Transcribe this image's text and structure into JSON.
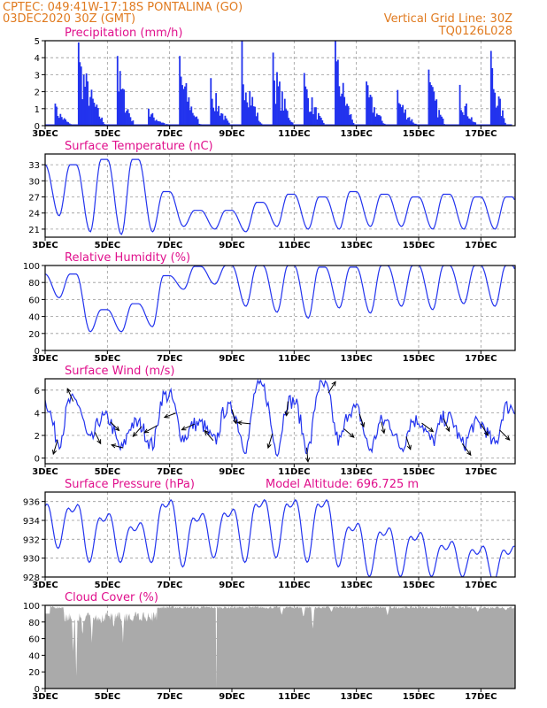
{
  "header": {
    "line1_left": "CPTEC:   049:41W-17:18S   PONTALINA (GO)",
    "line2_left": "03DEC2020 30Z (GMT)",
    "line1_right": "Vertical Grid Line: 30Z",
    "line2_right": "TQ0126L028"
  },
  "colors": {
    "header": "#e07a1f",
    "title": "#e0108c",
    "line": "#2233ee",
    "cloud": "#aaaaaa"
  },
  "chart_data": [
    {
      "type": "bar",
      "title": "Precipitation (mm/h)",
      "xticks": [
        "3DEC",
        "5DEC",
        "7DEC",
        "9DEC",
        "11DEC",
        "13DEC",
        "15DEC",
        "17DEC"
      ],
      "ylim": [
        0,
        5
      ],
      "yticks": [
        0,
        1,
        2,
        3,
        4,
        5
      ],
      "grid": true,
      "events": [
        {
          "x": [
            3.3,
            3.9
          ],
          "value": 1.3
        },
        {
          "x": [
            4.05,
            4.95
          ],
          "value": 4.9
        },
        {
          "x": [
            5.3,
            5.9
          ],
          "value": 4.1
        },
        {
          "x": [
            6.3,
            7.0
          ],
          "value": 1.0
        },
        {
          "x": [
            7.3,
            8.0
          ],
          "value": 4.1
        },
        {
          "x": [
            8.3,
            8.95
          ],
          "value": 2.8
        },
        {
          "x": [
            9.3,
            9.95
          ],
          "value": 5.0
        },
        {
          "x": [
            10.3,
            11.0
          ],
          "value": 4.3
        },
        {
          "x": [
            11.3,
            12.0
          ],
          "value": 3.1
        },
        {
          "x": [
            12.3,
            12.95
          ],
          "value": 5.0
        },
        {
          "x": [
            13.3,
            13.95
          ],
          "value": 2.6
        },
        {
          "x": [
            14.3,
            14.95
          ],
          "value": 2.1
        },
        {
          "x": [
            15.3,
            15.9
          ],
          "value": 3.3
        },
        {
          "x": [
            16.3,
            16.9
          ],
          "value": 2.4
        },
        {
          "x": [
            17.3,
            17.85
          ],
          "value": 4.4
        }
      ]
    },
    {
      "type": "line",
      "title": "Surface Temperature (nC)",
      "xticks": [
        "3DEC",
        "5DEC",
        "7DEC",
        "9DEC",
        "11DEC",
        "13DEC",
        "15DEC",
        "17DEC"
      ],
      "ylim": [
        19.5,
        35
      ],
      "yticks": [
        21,
        24,
        27,
        30,
        33
      ],
      "grid": true,
      "daily_min": [
        23.5,
        20.5,
        20.0,
        20.5,
        21.5,
        21.0,
        20.5,
        21.5,
        21.0,
        21.0,
        21.5,
        21.5,
        21.0,
        21.0,
        21.0,
        20.5
      ],
      "daily_max": [
        33.0,
        34.0,
        34.0,
        28.0,
        24.5,
        24.5,
        26.0,
        27.5,
        27.0,
        28.0,
        27.5,
        27.0,
        27.5,
        27.0,
        27.0,
        28.0
      ]
    },
    {
      "type": "line",
      "title": "Relative Humidity (%)",
      "xticks": [
        "3DEC",
        "5DEC",
        "7DEC",
        "9DEC",
        "11DEC",
        "13DEC",
        "15DEC",
        "17DEC"
      ],
      "ylim": [
        0,
        100
      ],
      "yticks": [
        0,
        20,
        40,
        60,
        80,
        100
      ],
      "grid": true,
      "daily_min": [
        62,
        22,
        22,
        28,
        72,
        78,
        52,
        45,
        38,
        50,
        44,
        52,
        48,
        55,
        52,
        52
      ],
      "daily_max": [
        90,
        48,
        55,
        88,
        99,
        100,
        100,
        100,
        98,
        98,
        100,
        100,
        100,
        100,
        100,
        100
      ]
    },
    {
      "type": "line",
      "title": "Surface Wind (m/s)",
      "xticks": [
        "3DEC",
        "5DEC",
        "7DEC",
        "9DEC",
        "11DEC",
        "13DEC",
        "15DEC",
        "17DEC"
      ],
      "ylim": [
        -0.5,
        7
      ],
      "yticks": [
        0,
        2,
        4,
        6
      ],
      "grid": true,
      "daily_min": [
        1.5,
        1.5,
        0.8,
        1.2,
        1.8,
        1.5,
        1.0,
        0.8,
        0.8,
        1.5,
        0.8,
        1.0,
        1.5,
        1.2,
        1.2,
        0.5
      ],
      "daily_max": [
        5.0,
        3.5,
        3.0,
        5.5,
        3.0,
        4.3,
        6.2,
        5.0,
        6.3,
        4.3,
        3.2,
        3.3,
        3.5,
        3.0,
        4.5,
        3.0
      ],
      "vectors": [
        {
          "x": 3.4,
          "u": -0.3,
          "v": -1.0
        },
        {
          "x": 3.9,
          "u": -0.4,
          "v": 0.9
        },
        {
          "x": 4.6,
          "u": 0.4,
          "v": -0.8
        },
        {
          "x": 5.1,
          "u": 0.6,
          "v": -0.6
        },
        {
          "x": 5.5,
          "u": -0.8,
          "v": 0.2
        },
        {
          "x": 6.1,
          "u": -0.6,
          "v": -0.7
        },
        {
          "x": 6.6,
          "u": -0.9,
          "v": -0.5
        },
        {
          "x": 7.2,
          "u": -0.8,
          "v": -0.3
        },
        {
          "x": 7.8,
          "u": -0.9,
          "v": -0.4
        },
        {
          "x": 8.4,
          "u": -0.6,
          "v": 0.7
        },
        {
          "x": 9.0,
          "u": 0.3,
          "v": -1.0
        },
        {
          "x": 9.6,
          "u": -0.9,
          "v": 0.1
        },
        {
          "x": 10.3,
          "u": -0.3,
          "v": -1.0
        },
        {
          "x": 10.8,
          "u": -0.1,
          "v": -1.0
        },
        {
          "x": 11.4,
          "u": 0.1,
          "v": -1.0
        },
        {
          "x": 12.1,
          "u": 0.5,
          "v": 0.8
        },
        {
          "x": 12.6,
          "u": 0.7,
          "v": -0.6
        },
        {
          "x": 13.1,
          "u": 0.3,
          "v": -0.9
        },
        {
          "x": 13.8,
          "u": 0.2,
          "v": -0.8
        },
        {
          "x": 14.6,
          "u": 0.3,
          "v": -0.9
        },
        {
          "x": 15.1,
          "u": 0.8,
          "v": -0.6
        },
        {
          "x": 15.8,
          "u": 0.4,
          "v": -0.9
        },
        {
          "x": 16.4,
          "u": 0.6,
          "v": -0.8
        },
        {
          "x": 17.0,
          "u": 0.5,
          "v": -0.8
        },
        {
          "x": 17.6,
          "u": 0.7,
          "v": -0.7
        }
      ]
    },
    {
      "type": "line",
      "title": "Surface Pressure (hPa)",
      "subtitle": "Model Altitude: 696.725  m",
      "xticks": [
        "3DEC",
        "5DEC",
        "7DEC",
        "9DEC",
        "11DEC",
        "13DEC",
        "15DEC",
        "17DEC"
      ],
      "ylim": [
        928,
        937
      ],
      "yticks": [
        928,
        930,
        932,
        934,
        936
      ],
      "grid": true,
      "daily_min": [
        931.5,
        930.0,
        930.0,
        930.0,
        929.5,
        930.5,
        930.0,
        930.5,
        930.0,
        929.5,
        928.5,
        928.5,
        928.5,
        928.5,
        928.0,
        928.0
      ],
      "daily_max": [
        935.5,
        934.5,
        933.5,
        936.0,
        934.5,
        935.0,
        936.0,
        936.0,
        936.0,
        933.5,
        933.0,
        932.5,
        931.5,
        931.0,
        931.0,
        931.5
      ]
    },
    {
      "type": "area",
      "title": "Cloud Cover (%)",
      "xticks": [
        "3DEC",
        "5DEC",
        "7DEC",
        "9DEC",
        "11DEC",
        "13DEC",
        "15DEC",
        "17DEC"
      ],
      "ylim": [
        0,
        100
      ],
      "yticks": [
        0,
        20,
        40,
        60,
        80,
        100
      ],
      "grid": true,
      "dips": [
        {
          "x": 3.9,
          "value": 40
        },
        {
          "x": 4.0,
          "value": 15
        },
        {
          "x": 4.2,
          "value": 60
        },
        {
          "x": 4.5,
          "value": 55
        },
        {
          "x": 4.8,
          "value": 75
        },
        {
          "x": 5.2,
          "value": 70
        },
        {
          "x": 5.5,
          "value": 55
        },
        {
          "x": 5.8,
          "value": 80
        },
        {
          "x": 6.2,
          "value": 85
        },
        {
          "x": 6.5,
          "value": 90
        },
        {
          "x": 8.5,
          "value": 0
        },
        {
          "x": 10.6,
          "value": 88
        },
        {
          "x": 11.3,
          "value": 85
        },
        {
          "x": 11.6,
          "value": 70
        },
        {
          "x": 12.2,
          "value": 92
        },
        {
          "x": 14.0,
          "value": 88
        },
        {
          "x": 16.9,
          "value": 92
        },
        {
          "x": 17.8,
          "value": 94
        }
      ]
    }
  ]
}
